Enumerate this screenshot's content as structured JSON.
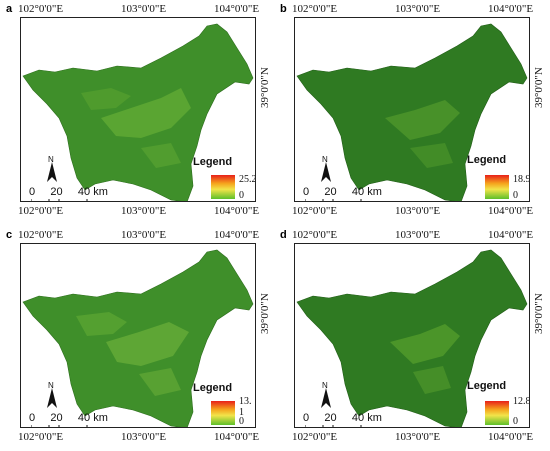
{
  "panels": [
    {
      "label": "a",
      "lon": [
        "102°0'0\"E",
        "103°0'0\"E",
        "104°0'0\"E"
      ],
      "lat": "39°0'0\"N",
      "legend_title": "Legend",
      "legend_max": "25.2",
      "legend_min": "0",
      "scale_text": "0     20     40 km",
      "north": "N"
    },
    {
      "label": "b",
      "lon": [
        "102°0'0\"E",
        "103°0'0\"E",
        "104°0'0\"E"
      ],
      "lat": "39°0'0\"N",
      "legend_title": "Legend",
      "legend_max": "18.9",
      "legend_min": "0",
      "scale_text": "0     20     40 km",
      "north": "N"
    },
    {
      "label": "c",
      "lon": [
        "102°0'0\"E",
        "103°0'0\"E",
        "104°0'0\"E"
      ],
      "lat": "39°0'0\"N",
      "legend_title": "Legend",
      "legend_max": "13. 1",
      "legend_min": "0",
      "scale_text": "0     20     40 km",
      "north": "N"
    },
    {
      "label": "d",
      "lon": [
        "102°0'0\"E",
        "103°0'0\"E",
        "104°0'0\"E"
      ],
      "lat": "39°0'0\"N",
      "legend_title": "Legend",
      "legend_max": "12.8",
      "legend_min": "0",
      "scale_text": "0     20     40 km",
      "north": "N"
    }
  ],
  "colors": {
    "map_fill": "#3f8f2a",
    "map_light": "#7cc03b",
    "ramp_high": "#e8201a",
    "ramp_mid": "#f2e44a",
    "ramp_low": "#5dbf2a"
  }
}
